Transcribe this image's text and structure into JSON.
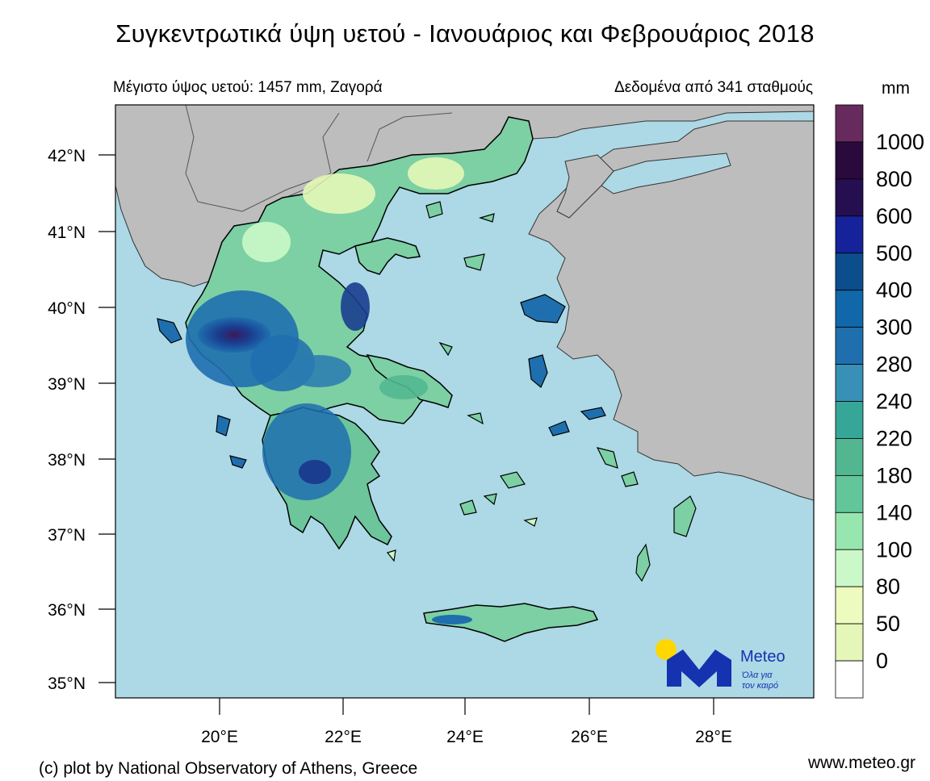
{
  "title": "Συγκεντρωτικά ύψη υετού - Ιανουάριος και Φεβρουάριος 2018",
  "subtitle_left": "Μέγιστο ύψος υετού: 1457 mm, Ζαγορά",
  "subtitle_right": "Δεδομένα από 341 σταθμούς",
  "colorbar": {
    "unit": "mm",
    "levels": [
      "1000",
      "800",
      "600",
      "500",
      "400",
      "300",
      "280",
      "240",
      "220",
      "180",
      "140",
      "100",
      "80",
      "50",
      "0"
    ],
    "colors": [
      "#672a5c",
      "#2a0a3d",
      "#250f50",
      "#15229a",
      "#0c4d8c",
      "#1067aa",
      "#1f6faf",
      "#3890b6",
      "#36a698",
      "#52b791",
      "#63c59a",
      "#98e6af",
      "#cbf8c8",
      "#eefbbe",
      "#e4f7b8",
      "#ffffff"
    ]
  },
  "axes": {
    "lat_labels": [
      "42°N",
      "41°N",
      "40°N",
      "39°N",
      "38°N",
      "37°N",
      "36°N",
      "35°N"
    ],
    "lon_labels": [
      "20°E",
      "22°E",
      "24°E",
      "26°E",
      "28°E"
    ]
  },
  "map_colors": {
    "sea": "#add8e6",
    "land_neighbors": "#bdbdbd",
    "border": "#000000"
  },
  "logo": {
    "name": "Meteo",
    "tagline_line1": "Όλα για",
    "tagline_line2": "τον καιρό",
    "sun_color": "#ffd700",
    "brand_color": "#1533b0"
  },
  "footer_left": "(c) plot by National Observatory of Athens, Greece",
  "footer_right": "www.meteo.gr"
}
